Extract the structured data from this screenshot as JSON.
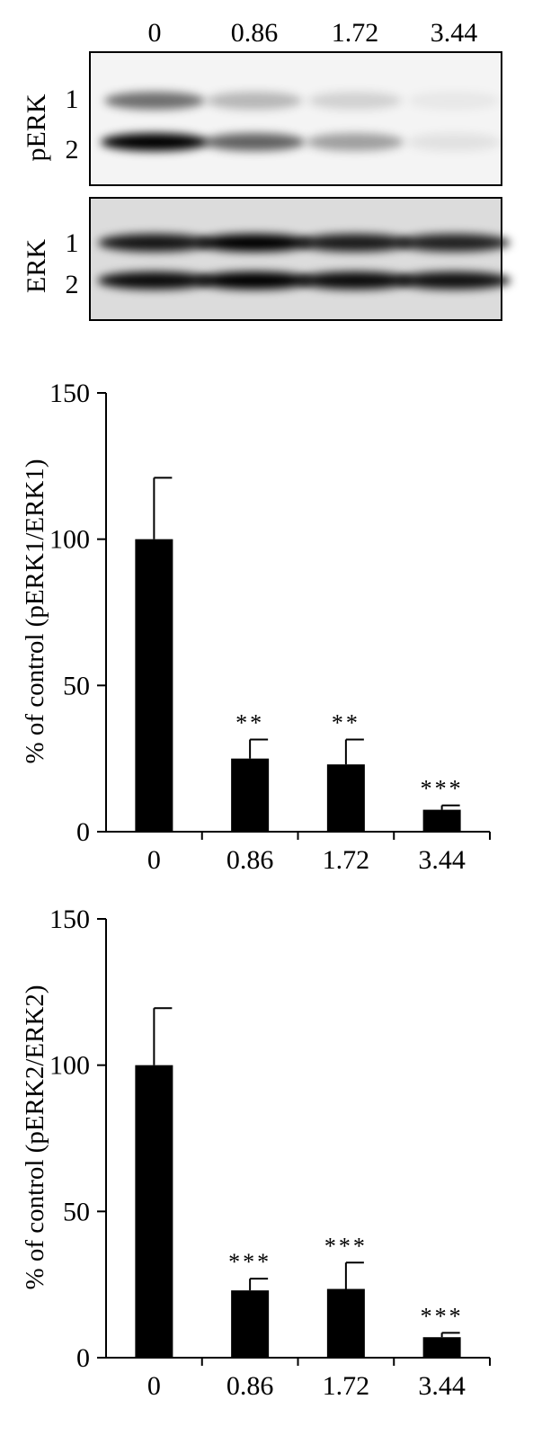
{
  "blot": {
    "lane_labels": [
      "0",
      "0.86",
      "1.72",
      "3.44"
    ],
    "panels": [
      {
        "label": "pERK",
        "band_labels": [
          "1",
          "2"
        ],
        "bands": {
          "1": [
            0.55,
            0.25,
            0.14,
            0.05
          ],
          "2": [
            1.0,
            0.6,
            0.35,
            0.08
          ]
        }
      },
      {
        "label": "ERK",
        "band_labels": [
          "1",
          "2"
        ],
        "bands": {
          "1": [
            0.9,
            1.0,
            0.88,
            0.85
          ],
          "2": [
            0.95,
            1.0,
            0.95,
            0.92
          ]
        }
      }
    ]
  },
  "chart_data": [
    {
      "type": "bar",
      "categories": [
        "0",
        "0.86",
        "1.72",
        "3.44"
      ],
      "values": [
        100,
        25,
        23,
        7.5
      ],
      "errors": [
        21,
        6.5,
        8.5,
        1.5
      ],
      "annotations": [
        "",
        "**",
        "**",
        "***"
      ],
      "ylabel": "% of control (pERK1/ERK1)",
      "ylim": [
        0,
        150
      ],
      "yticks": [
        "0",
        "50",
        "100",
        "150"
      ]
    },
    {
      "type": "bar",
      "categories": [
        "0",
        "0.86",
        "1.72",
        "3.44"
      ],
      "values": [
        100,
        23,
        23.5,
        7
      ],
      "errors": [
        19.5,
        4,
        9,
        1.5
      ],
      "annotations": [
        "",
        "***",
        "***",
        "***"
      ],
      "ylabel": "% of control (pERK2/ERK2)",
      "ylim": [
        0,
        150
      ],
      "yticks": [
        "0",
        "50",
        "100",
        "150"
      ]
    }
  ]
}
